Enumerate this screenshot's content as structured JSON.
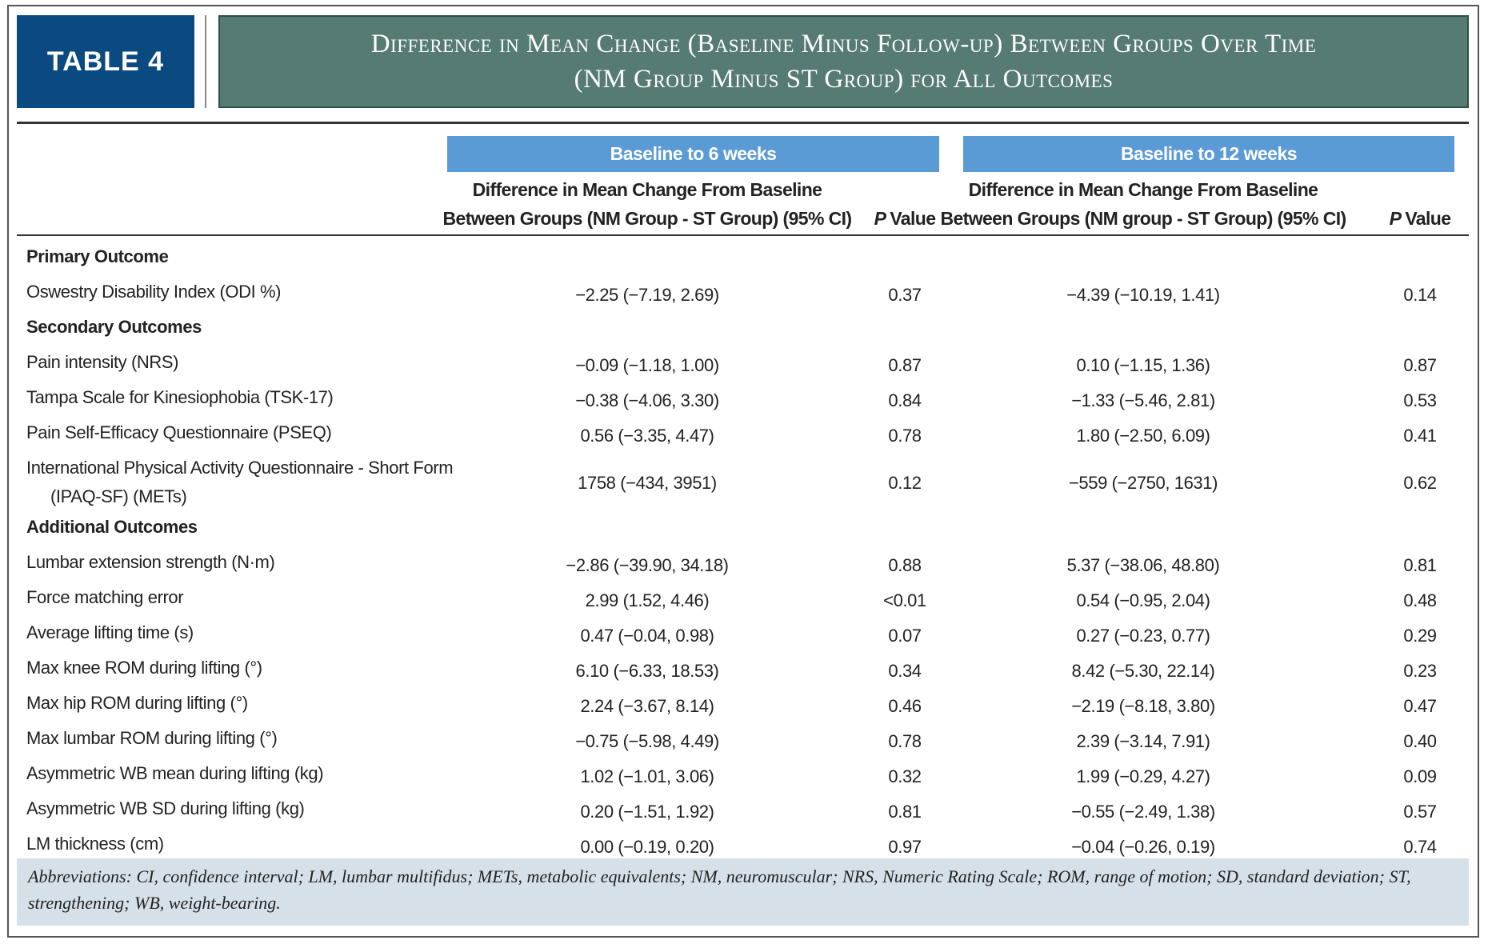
{
  "header": {
    "label": "TABLE 4",
    "title_lines": [
      "Difference in Mean Change (Baseline Minus Follow-up) Between Groups Over Time",
      "(NM Group Minus ST Group) for All Outcomes"
    ]
  },
  "table": {
    "groups": [
      {
        "name": "Baseline to 6 weeks",
        "diff_header": [
          "Difference in Mean Change From Baseline",
          "Between Groups (NM Group - ST Group) (95% CI)"
        ],
        "p_header": [
          "P",
          "Value"
        ]
      },
      {
        "name": "Baseline to 12 weeks",
        "diff_header": [
          "Difference in Mean Change From Baseline",
          "Between Groups (NM group - ST Group) (95% CI)"
        ],
        "p_header": [
          "P",
          "Value"
        ]
      }
    ],
    "rows": [
      {
        "section": "Primary Outcome"
      },
      {
        "label": "Oswestry Disability Index (ODI %)",
        "cells": [
          "−2.25 (−7.19, 2.69)",
          "0.37",
          "−4.39 (−10.19, 1.41)",
          "0.14"
        ]
      },
      {
        "section": "Secondary Outcomes"
      },
      {
        "label": "Pain intensity (NRS)",
        "cells": [
          "−0.09 (−1.18, 1.00)",
          "0.87",
          "0.10 (−1.15, 1.36)",
          "0.87"
        ]
      },
      {
        "label": "Tampa Scale for Kinesiophobia (TSK-17)",
        "cells": [
          "−0.38 (−4.06, 3.30)",
          "0.84",
          "−1.33 (−5.46, 2.81)",
          "0.53"
        ]
      },
      {
        "label": "Pain Self-Efficacy Questionnaire (PSEQ)",
        "cells": [
          "0.56 (−3.35, 4.47)",
          "0.78",
          "1.80 (−2.50, 6.09)",
          "0.41"
        ]
      },
      {
        "label": "International Physical Activity Questionnaire - Short Form (IPAQ-SF) (METs)",
        "cells": [
          "1758 (−434, 3951)",
          "0.12",
          "−559 (−2750, 1631)",
          "0.62"
        ]
      },
      {
        "section": "Additional Outcomes"
      },
      {
        "label": "Lumbar extension strength (N·m)",
        "cells": [
          "−2.86 (−39.90, 34.18)",
          "0.88",
          "5.37 (−38.06, 48.80)",
          "0.81"
        ]
      },
      {
        "label": "Force matching error",
        "cells": [
          "2.99 (1.52, 4.46)",
          "<0.01",
          "0.54 (−0.95, 2.04)",
          "0.48"
        ]
      },
      {
        "label": "Average lifting time (s)",
        "cells": [
          "0.47 (−0.04, 0.98)",
          "0.07",
          "0.27 (−0.23, 0.77)",
          "0.29"
        ]
      },
      {
        "label": "Max knee ROM during lifting (°)",
        "cells": [
          "6.10 (−6.33, 18.53)",
          "0.34",
          "8.42 (−5.30, 22.14)",
          "0.23"
        ]
      },
      {
        "label": "Max hip ROM during lifting (°)",
        "cells": [
          "2.24 (−3.67, 8.14)",
          "0.46",
          "−2.19 (−8.18, 3.80)",
          "0.47"
        ]
      },
      {
        "label": "Max lumbar ROM during lifting (°)",
        "cells": [
          "−0.75 (−5.98, 4.49)",
          "0.78",
          "2.39 (−3.14, 7.91)",
          "0.40"
        ]
      },
      {
        "label": "Asymmetric WB mean during lifting (kg)",
        "cells": [
          "1.02 (−1.01, 3.06)",
          "0.32",
          "1.99 (−0.29, 4.27)",
          "0.09"
        ]
      },
      {
        "label": "Asymmetric WB SD during lifting (kg)",
        "cells": [
          "0.20 (−1.51, 1.92)",
          "0.81",
          "−0.55 (−2.49, 1.38)",
          "0.57"
        ]
      },
      {
        "label": "LM thickness (cm)",
        "cells": [
          "0.00 (−0.19, 0.20)",
          "0.97",
          "−0.04 (−0.26, 0.19)",
          "0.74"
        ]
      }
    ]
  },
  "footnote": "Abbreviations: CI, confidence interval; LM, lumbar multifidus; METs, metabolic equivalents; NM, neuromuscular; NRS, Numeric Rating Scale; ROM, range of motion; SD, standard deviation; ST, strengthening; WB, weight-bearing."
}
